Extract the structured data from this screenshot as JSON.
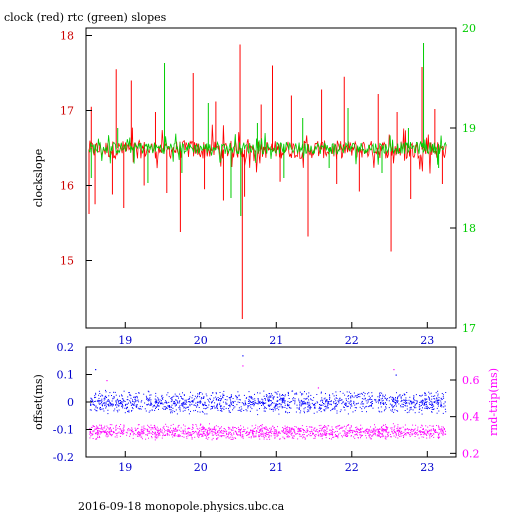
{
  "footer": "2016-09-18 monopole.physics.ubc.ca",
  "chart_data": [
    {
      "type": "line",
      "title": "clock (red) rtc (green) slopes",
      "xlabel": "",
      "ylabel": "clockslope",
      "xlim": [
        18.48,
        23.38
      ],
      "ylim": [
        14.1,
        18.1
      ],
      "y2lim": [
        17,
        20
      ],
      "grid": false,
      "legend": "none",
      "x_ticks": [
        "19",
        "20",
        "21",
        "22",
        "23"
      ],
      "y_ticks": [
        "15",
        "16",
        "17",
        "18"
      ],
      "y2_ticks": [
        "17",
        "18",
        "19",
        "20"
      ],
      "colors": {
        "clock": "#ff0000",
        "rtc": "#00cc00",
        "left_axis": "#cc0000",
        "right_axis": "#00cc00",
        "frame": "#000000"
      },
      "series": [
        {
          "axis": "left",
          "color": "#ff0000",
          "baseline": 16.48,
          "spikes": [
            {
              "x": 18.52,
              "y": 15.62
            },
            {
              "x": 18.55,
              "y": 17.05
            },
            {
              "x": 18.6,
              "y": 15.75
            },
            {
              "x": 18.83,
              "y": 15.88
            },
            {
              "x": 18.88,
              "y": 17.55
            },
            {
              "x": 18.98,
              "y": 15.7
            },
            {
              "x": 19.08,
              "y": 17.4
            },
            {
              "x": 19.25,
              "y": 16.0
            },
            {
              "x": 19.4,
              "y": 16.98
            },
            {
              "x": 19.55,
              "y": 15.9
            },
            {
              "x": 19.73,
              "y": 15.38
            },
            {
              "x": 19.9,
              "y": 17.5
            },
            {
              "x": 20.05,
              "y": 15.95
            },
            {
              "x": 20.2,
              "y": 17.12
            },
            {
              "x": 20.3,
              "y": 15.8
            },
            {
              "x": 20.52,
              "y": 17.88
            },
            {
              "x": 20.55,
              "y": 14.22
            },
            {
              "x": 20.58,
              "y": 15.85
            },
            {
              "x": 20.8,
              "y": 17.08
            },
            {
              "x": 20.95,
              "y": 17.6
            },
            {
              "x": 21.05,
              "y": 16.05
            },
            {
              "x": 21.2,
              "y": 17.2
            },
            {
              "x": 21.42,
              "y": 15.32
            },
            {
              "x": 21.6,
              "y": 17.28
            },
            {
              "x": 21.8,
              "y": 16.02
            },
            {
              "x": 21.9,
              "y": 17.45
            },
            {
              "x": 22.1,
              "y": 15.92
            },
            {
              "x": 22.35,
              "y": 17.22
            },
            {
              "x": 22.52,
              "y": 15.12
            },
            {
              "x": 22.6,
              "y": 16.98
            },
            {
              "x": 22.78,
              "y": 15.82
            },
            {
              "x": 22.93,
              "y": 17.58
            },
            {
              "x": 23.1,
              "y": 17.02
            },
            {
              "x": 23.2,
              "y": 16.02
            }
          ]
        },
        {
          "axis": "right",
          "color": "#00cc00",
          "baseline": 18.8,
          "spikes": [
            {
              "x": 18.55,
              "y": 18.5
            },
            {
              "x": 18.9,
              "y": 19.0
            },
            {
              "x": 19.3,
              "y": 18.45
            },
            {
              "x": 19.52,
              "y": 19.65
            },
            {
              "x": 19.75,
              "y": 18.55
            },
            {
              "x": 20.1,
              "y": 19.25
            },
            {
              "x": 20.4,
              "y": 18.3
            },
            {
              "x": 20.53,
              "y": 18.12
            },
            {
              "x": 20.75,
              "y": 19.05
            },
            {
              "x": 21.1,
              "y": 18.5
            },
            {
              "x": 21.35,
              "y": 19.1
            },
            {
              "x": 21.7,
              "y": 18.6
            },
            {
              "x": 21.95,
              "y": 19.2
            },
            {
              "x": 22.4,
              "y": 18.55
            },
            {
              "x": 22.75,
              "y": 19.0
            },
            {
              "x": 22.95,
              "y": 19.85
            },
            {
              "x": 23.15,
              "y": 18.6
            }
          ]
        }
      ]
    },
    {
      "type": "scatter",
      "title": "",
      "xlabel": "",
      "ylabel": "offset(ms)",
      "y2label": "rnd-trip(ms)",
      "xlim": [
        18.48,
        23.38
      ],
      "ylim": [
        -0.2,
        0.2
      ],
      "y2lim": [
        0.18,
        0.78
      ],
      "grid": false,
      "legend": "none",
      "x_ticks": [
        "19",
        "20",
        "21",
        "22",
        "23"
      ],
      "y_ticks": [
        "-0.2",
        "-0.1",
        "0",
        "0.1",
        "0.2"
      ],
      "y2_ticks": [
        "0.2",
        "0.4",
        "0.6"
      ],
      "colors": {
        "offset": "#0000ff",
        "roundtrip": "#ff00ff"
      },
      "series": [
        {
          "axis": "left",
          "color": "#0000ff",
          "center": 0.0,
          "spread": 0.045,
          "outliers": [
            {
              "x": 20.55,
              "y": 0.17
            },
            {
              "x": 18.6,
              "y": 0.12
            },
            {
              "x": 22.58,
              "y": 0.1
            }
          ]
        },
        {
          "axis": "right",
          "color": "#ff00ff",
          "center": 0.32,
          "spread": 0.045,
          "outliers": [
            {
              "x": 20.55,
              "y": 0.68
            },
            {
              "x": 22.55,
              "y": 0.66
            },
            {
              "x": 18.75,
              "y": 0.6
            },
            {
              "x": 21.55,
              "y": 0.56
            }
          ]
        }
      ]
    }
  ]
}
